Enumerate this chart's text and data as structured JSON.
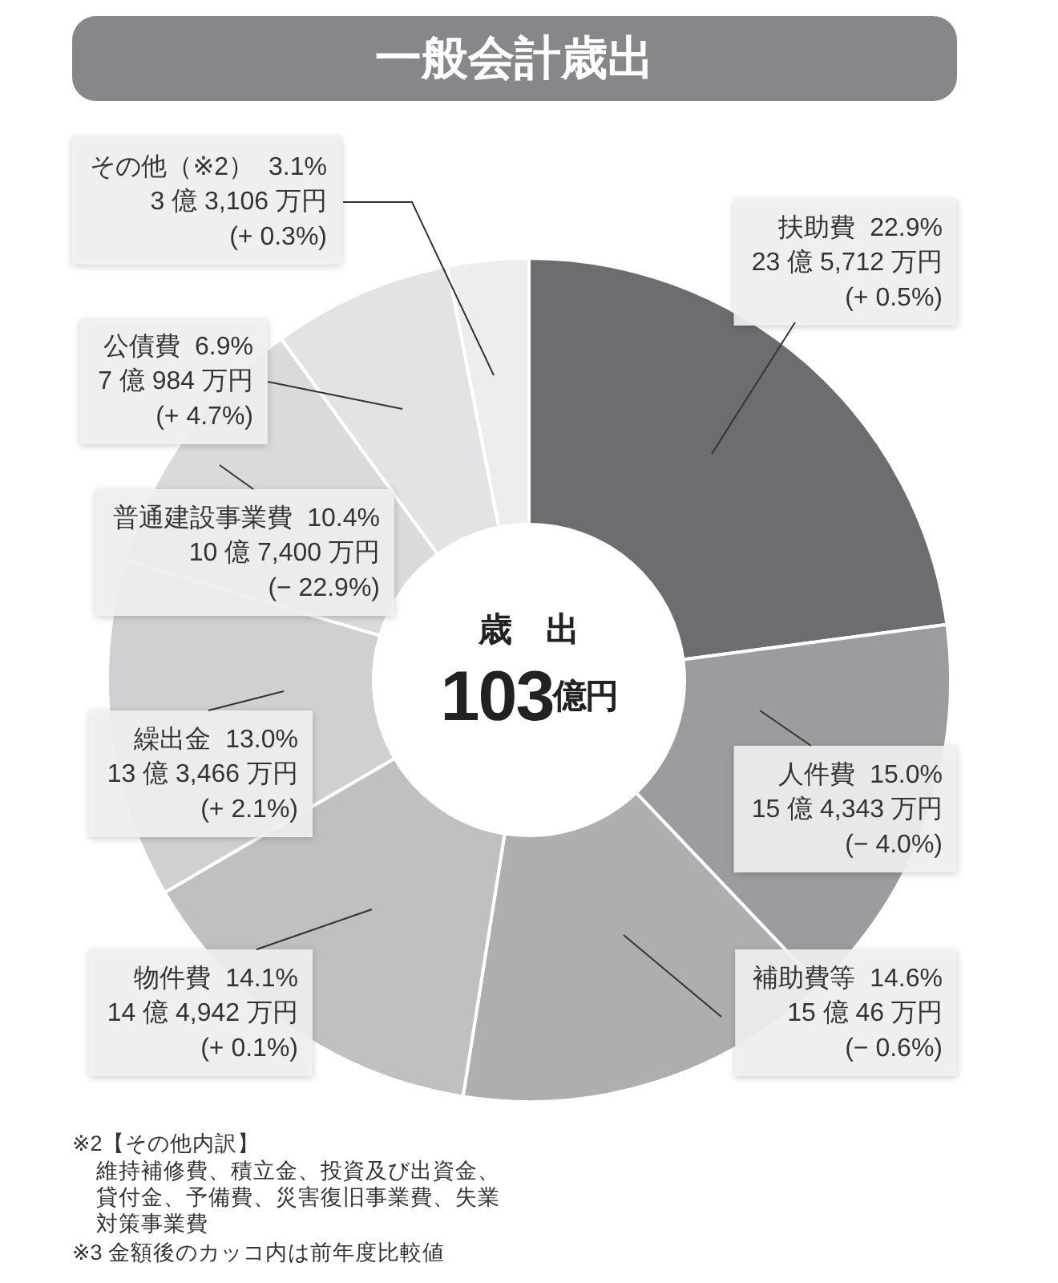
{
  "chart_data": {
    "type": "donut",
    "title": "一般会計歳出",
    "categories": [
      "扶助費",
      "人件費",
      "補助費等",
      "物件費",
      "繰出金",
      "普通建設事業費",
      "公債費",
      "その他（※2）"
    ],
    "values": [
      22.9,
      15.0,
      14.6,
      14.1,
      13.0,
      10.4,
      6.9,
      3.1
    ],
    "colors": [
      "#6c6c71",
      "#9c9ca0",
      "#aeaeb1",
      "#c0c0c2",
      "#d0d0d2",
      "#dadadc",
      "#e3e3e5",
      "#ededee"
    ],
    "value_labels": [
      "22.9%",
      "15.0%",
      "14.6%",
      "14.1%",
      "13.0%",
      "10.4%",
      "6.9%",
      "3.1%"
    ],
    "annotations": [
      "歳　出",
      "103億円",
      "23 億 5,712 万円",
      "(+ 0.5%)",
      "15 億 4,343 万円",
      "(− 4.0%)",
      "15 億 46 万円",
      "(− 0.6%)",
      "14 億 4,942 万円",
      "(+ 0.1%)",
      "13 億 3,466 万円",
      "(+ 2.1%)",
      "10 億 7,400 万円",
      "(− 22.9%)",
      "7 億 984 万円",
      "(+ 4.7%)",
      "3 億 3,106 万円",
      "(+ 0.3%)",
      "※2【その他内訳】",
      "維持補修費、積立金、投資及び出資金、貸付金、予備費、災害復旧事業費、失業対策事業費",
      "※3 金額後のカッコ内は前年度比較値"
    ]
  }
}
